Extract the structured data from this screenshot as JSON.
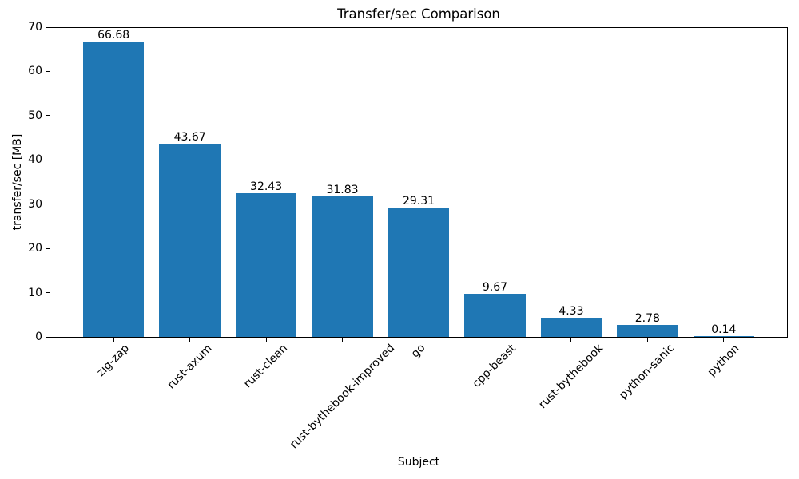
{
  "chart_data": {
    "type": "bar",
    "title": "Transfer/sec Comparison",
    "xlabel": "Subject",
    "ylabel": "transfer/sec [MB]",
    "categories": [
      "zig-zap",
      "rust-axum",
      "rust-clean",
      "rust-bythebook-improved",
      "go",
      "cpp-beast",
      "rust-bythebook",
      "python-sanic",
      "python"
    ],
    "values": [
      66.68,
      43.67,
      32.43,
      31.83,
      29.31,
      9.67,
      4.33,
      2.78,
      0.14
    ],
    "value_labels": [
      "66.68",
      "43.67",
      "32.43",
      "31.83",
      "29.31",
      "9.67",
      "4.33",
      "2.78",
      "0.14"
    ],
    "ylim": [
      0,
      70
    ],
    "yticks": [
      0,
      10,
      20,
      30,
      40,
      50,
      60,
      70
    ],
    "x_tick_rotation_deg": 45,
    "grid": false,
    "legend": null,
    "bar_color": "#1f77b4",
    "axis_color": "#000000",
    "text_color": "#000000",
    "background_color": "#ffffff"
  }
}
